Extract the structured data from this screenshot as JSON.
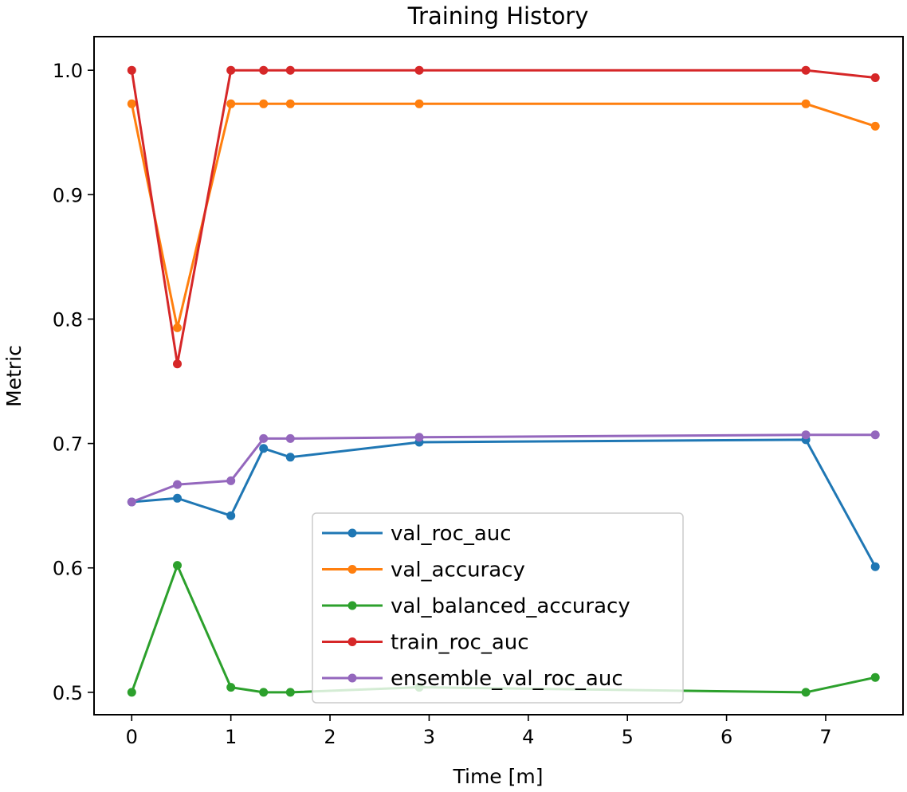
{
  "chart_data": {
    "type": "line",
    "title": "Training History",
    "xlabel": "Time [m]",
    "ylabel": "Metric",
    "xlim": [
      -0.38,
      7.78
    ],
    "ylim": [
      0.482,
      1.027
    ],
    "xticks": [
      "0",
      "1",
      "2",
      "3",
      "4",
      "5",
      "6",
      "7"
    ],
    "xtick_values": [
      0,
      1,
      2,
      3,
      4,
      5,
      6,
      7
    ],
    "yticks": [
      "0.5",
      "0.6",
      "0.7",
      "0.8",
      "0.9",
      "1.0"
    ],
    "ytick_values": [
      0.5,
      0.6,
      0.7,
      0.8,
      0.9,
      1.0
    ],
    "grid": false,
    "legend_position": "lower center",
    "x": [
      0.0,
      0.46,
      1.0,
      1.33,
      1.6,
      2.9,
      6.8,
      7.5
    ],
    "series": [
      {
        "name": "val_roc_auc",
        "color": "#1f77b4",
        "values": [
          0.653,
          0.656,
          0.642,
          0.696,
          0.689,
          0.701,
          0.703,
          0.601
        ]
      },
      {
        "name": "val_accuracy",
        "color": "#ff7f0e",
        "values": [
          0.973,
          0.793,
          0.973,
          0.973,
          0.973,
          0.973,
          0.973,
          0.955
        ]
      },
      {
        "name": "val_balanced_accuracy",
        "color": "#2ca02c",
        "values": [
          0.5,
          0.602,
          0.504,
          0.5,
          0.5,
          0.504,
          0.5,
          0.512
        ]
      },
      {
        "name": "train_roc_auc",
        "color": "#d62728",
        "values": [
          1.0,
          0.764,
          1.0,
          1.0,
          1.0,
          1.0,
          1.0,
          0.994
        ]
      },
      {
        "name": "ensemble_val_roc_auc",
        "color": "#9467bd",
        "values": [
          0.653,
          0.667,
          0.67,
          0.704,
          0.704,
          0.705,
          0.707,
          0.707
        ]
      }
    ]
  }
}
